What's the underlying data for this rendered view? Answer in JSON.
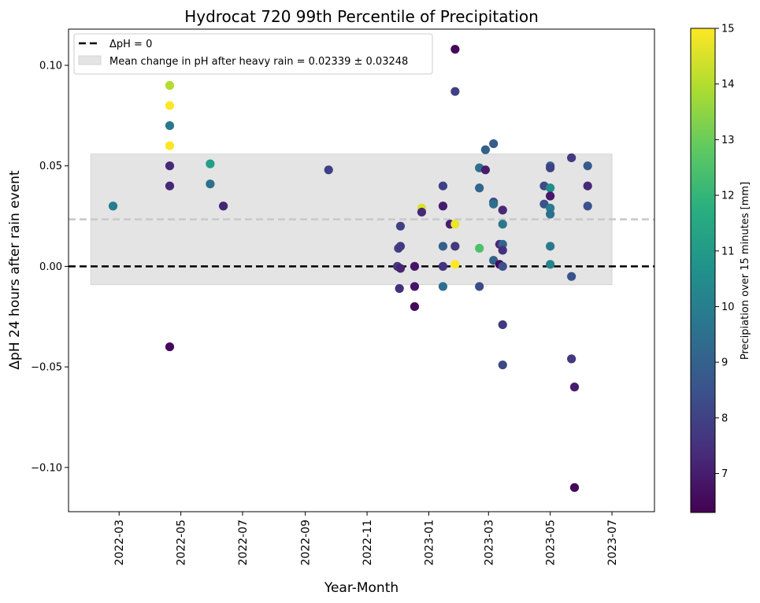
{
  "chart_data": {
    "type": "scatter",
    "title": "Hydrocat 720 99th Percentile of Precipitation",
    "xlabel": "Year-Month",
    "ylabel": "ΔpH 24 hours after rain event",
    "x_ticks": [
      "2022-03",
      "2022-05",
      "2022-07",
      "2022-09",
      "2022-11",
      "2023-01",
      "2023-03",
      "2023-05",
      "2023-07"
    ],
    "y_ticks": [
      "−0.10",
      "−0.05",
      "0.00",
      "0.05",
      "0.10"
    ],
    "xlim": [
      "2022-01-10",
      "2023-08-12"
    ],
    "ylim": [
      -0.122,
      0.118
    ],
    "grid": false,
    "legend_position": "top-left",
    "legend": {
      "zero_line_label": "ΔpH = 0",
      "band_label": "Mean change in pH after heavy rain = 0.02339 ± 0.03248"
    },
    "mean_change": 0.02339,
    "mean_change_std": 0.03248,
    "band_x_range": [
      "2022-02-01",
      "2023-07-01"
    ],
    "zero_line_color": "#000000",
    "mean_line_color": "#c8c8c8",
    "band_color": "#e4e4e4",
    "colorbar": {
      "label": "Precipiation over 15 minutes [mm]",
      "min": 6.3,
      "max": 15,
      "ticks": [
        "7",
        "8",
        "9",
        "10",
        "11",
        "12",
        "13",
        "14",
        "15"
      ],
      "colormap": "viridis"
    },
    "points": [
      {
        "x": "2022-02-23",
        "y": 0.03,
        "c": 10.0
      },
      {
        "x": "2022-04-20",
        "y": 0.09,
        "c": 14.0
      },
      {
        "x": "2022-04-20",
        "y": 0.08,
        "c": 15.0
      },
      {
        "x": "2022-04-20",
        "y": 0.07,
        "c": 9.8
      },
      {
        "x": "2022-04-20",
        "y": 0.06,
        "c": 15.0
      },
      {
        "x": "2022-04-20",
        "y": 0.05,
        "c": 7.3
      },
      {
        "x": "2022-04-20",
        "y": 0.04,
        "c": 7.3
      },
      {
        "x": "2022-04-20",
        "y": -0.04,
        "c": 6.5
      },
      {
        "x": "2022-05-30",
        "y": 0.051,
        "c": 11.2
      },
      {
        "x": "2022-05-30",
        "y": 0.041,
        "c": 14.5
      },
      {
        "x": "2022-05-30",
        "y": 0.041,
        "c": 9.5
      },
      {
        "x": "2022-06-12",
        "y": 0.03,
        "c": 7.2
      },
      {
        "x": "2022-09-24",
        "y": 0.048,
        "c": 8.0
      },
      {
        "x": "2022-12-01",
        "y": 0.0,
        "c": 7.7
      },
      {
        "x": "2022-12-02",
        "y": 0.009,
        "c": 8.0
      },
      {
        "x": "2022-12-03",
        "y": -0.011,
        "c": 7.5
      },
      {
        "x": "2022-12-04",
        "y": 0.02,
        "c": 8.0
      },
      {
        "x": "2022-12-04",
        "y": 0.01,
        "c": 7.8
      },
      {
        "x": "2022-12-04",
        "y": -0.001,
        "c": 7.2
      },
      {
        "x": "2022-12-18",
        "y": 0.0,
        "c": 6.8
      },
      {
        "x": "2022-12-18",
        "y": -0.01,
        "c": 6.8
      },
      {
        "x": "2022-12-18",
        "y": -0.02,
        "c": 6.5
      },
      {
        "x": "2022-12-25",
        "y": 0.029,
        "c": 14.5
      },
      {
        "x": "2022-12-25",
        "y": 0.027,
        "c": 7.3
      },
      {
        "x": "2023-01-15",
        "y": 0.04,
        "c": 8.0
      },
      {
        "x": "2023-01-15",
        "y": 0.03,
        "c": 7.0
      },
      {
        "x": "2023-01-15",
        "y": 0.01,
        "c": 9.0
      },
      {
        "x": "2023-01-15",
        "y": 0.0,
        "c": 7.6
      },
      {
        "x": "2023-01-15",
        "y": -0.01,
        "c": 9.5
      },
      {
        "x": "2023-01-22",
        "y": 0.021,
        "c": 7.0
      },
      {
        "x": "2023-01-27",
        "y": 0.108,
        "c": 6.5
      },
      {
        "x": "2023-01-27",
        "y": 0.087,
        "c": 8.0
      },
      {
        "x": "2023-01-27",
        "y": 0.021,
        "c": 14.8
      },
      {
        "x": "2023-01-27",
        "y": 0.01,
        "c": 14.8
      },
      {
        "x": "2023-01-27",
        "y": 0.01,
        "c": 7.8
      },
      {
        "x": "2023-01-27",
        "y": 0.001,
        "c": 15.0
      },
      {
        "x": "2023-02-20",
        "y": 0.049,
        "c": 9.5
      },
      {
        "x": "2023-02-20",
        "y": 0.039,
        "c": 9.2
      },
      {
        "x": "2023-02-20",
        "y": 0.009,
        "c": 12.5
      },
      {
        "x": "2023-02-20",
        "y": -0.01,
        "c": 8.3
      },
      {
        "x": "2023-02-26",
        "y": 0.058,
        "c": 9.0
      },
      {
        "x": "2023-02-26",
        "y": 0.048,
        "c": 7.0
      },
      {
        "x": "2023-03-06",
        "y": 0.061,
        "c": 8.8
      },
      {
        "x": "2023-03-06",
        "y": 0.032,
        "c": 8.2
      },
      {
        "x": "2023-03-06",
        "y": 0.031,
        "c": 9.5
      },
      {
        "x": "2023-03-06",
        "y": 0.003,
        "c": 9.0
      },
      {
        "x": "2023-03-12",
        "y": 0.011,
        "c": 7.3
      },
      {
        "x": "2023-03-12",
        "y": 0.001,
        "c": 6.5
      },
      {
        "x": "2023-03-15",
        "y": 0.028,
        "c": 7.3
      },
      {
        "x": "2023-03-15",
        "y": 0.021,
        "c": 9.8
      },
      {
        "x": "2023-03-15",
        "y": 0.011,
        "c": 9.2
      },
      {
        "x": "2023-03-15",
        "y": 0.008,
        "c": 7.5
      },
      {
        "x": "2023-03-15",
        "y": 0.0,
        "c": 8.5
      },
      {
        "x": "2023-03-15",
        "y": -0.029,
        "c": 7.8
      },
      {
        "x": "2023-03-15",
        "y": -0.049,
        "c": 8.2
      },
      {
        "x": "2023-04-25",
        "y": 0.04,
        "c": 8.3
      },
      {
        "x": "2023-04-25",
        "y": 0.031,
        "c": 8.5
      },
      {
        "x": "2023-05-01",
        "y": 0.05,
        "c": 9.0
      },
      {
        "x": "2023-05-01",
        "y": 0.049,
        "c": 8.0
      },
      {
        "x": "2023-05-01",
        "y": 0.039,
        "c": 10.5
      },
      {
        "x": "2023-05-01",
        "y": 0.035,
        "c": 6.9
      },
      {
        "x": "2023-05-01",
        "y": 0.029,
        "c": 10.0
      },
      {
        "x": "2023-05-01",
        "y": 0.026,
        "c": 9.5
      },
      {
        "x": "2023-05-01",
        "y": 0.01,
        "c": 9.8
      },
      {
        "x": "2023-05-01",
        "y": 0.001,
        "c": 10.2
      },
      {
        "x": "2023-05-22",
        "y": 0.054,
        "c": 7.8
      },
      {
        "x": "2023-05-22",
        "y": -0.005,
        "c": 8.5
      },
      {
        "x": "2023-05-22",
        "y": -0.046,
        "c": 7.8
      },
      {
        "x": "2023-05-25",
        "y": -0.06,
        "c": 7.0
      },
      {
        "x": "2023-05-25",
        "y": -0.11,
        "c": 6.5
      },
      {
        "x": "2023-06-07",
        "y": 0.05,
        "c": 8.8
      },
      {
        "x": "2023-06-07",
        "y": 0.04,
        "c": 7.3
      },
      {
        "x": "2023-06-07",
        "y": 0.03,
        "c": 8.5
      }
    ]
  }
}
